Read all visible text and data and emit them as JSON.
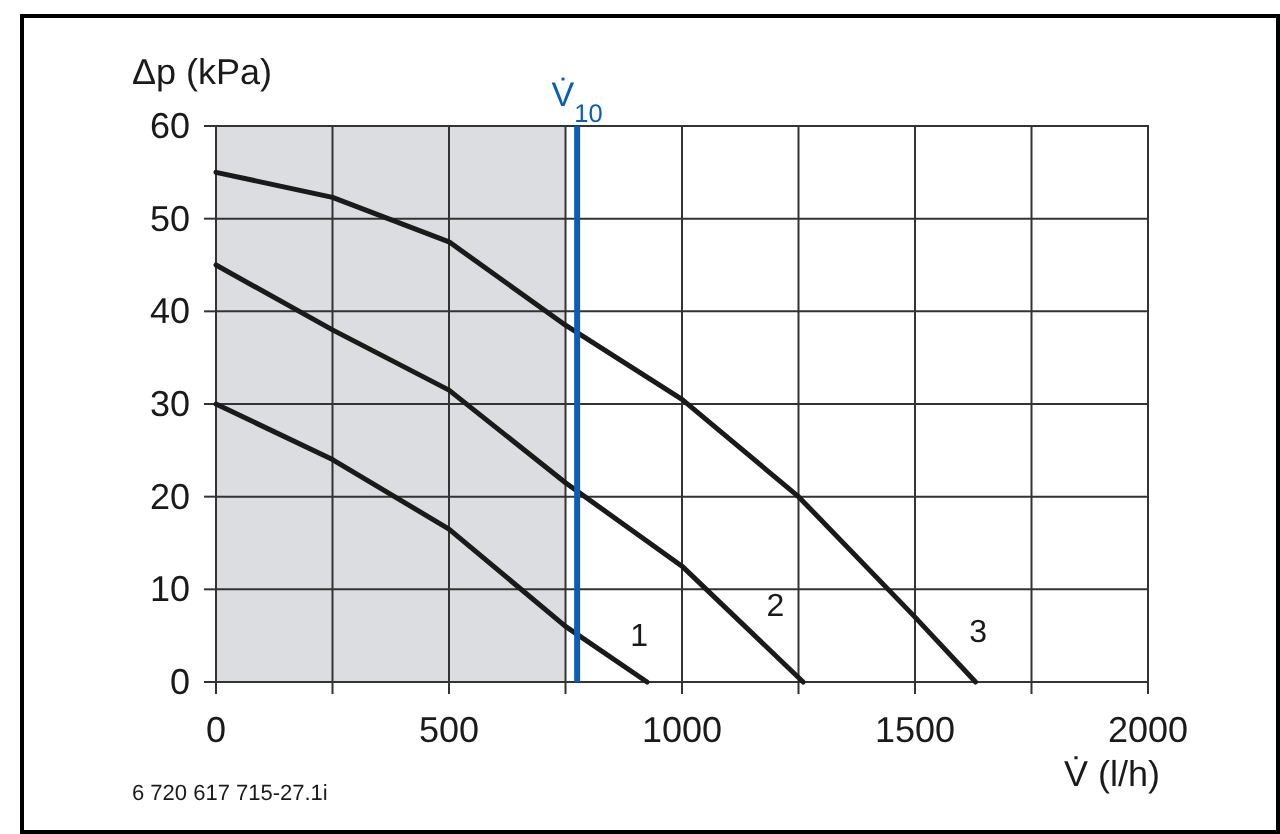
{
  "chart_data": {
    "type": "line",
    "xlabel": "V̇ (l/h)",
    "ylabel": "Δp (kPa)",
    "xlim": [
      0,
      2000
    ],
    "ylim": [
      0,
      60
    ],
    "xticks": [
      0,
      {
        "value": 250,
        "label": null
      },
      500,
      {
        "value": 750,
        "label": null
      },
      1000,
      {
        "value": 1250,
        "label": null
      },
      1500,
      {
        "value": 1750,
        "label": null
      },
      2000
    ],
    "yticks": [
      0,
      10,
      20,
      30,
      40,
      50,
      60
    ],
    "grid": true,
    "marker": "none",
    "line_style": "solid",
    "series": [
      {
        "name": "1",
        "color": "#1a1a1a",
        "x": [
          0,
          250,
          500,
          750,
          925
        ],
        "values": [
          30,
          24,
          16.5,
          6,
          0
        ]
      },
      {
        "name": "2",
        "color": "#1a1a1a",
        "x": [
          0,
          250,
          500,
          750,
          1000,
          1260
        ],
        "values": [
          45,
          38,
          31.5,
          21.5,
          12.5,
          0
        ]
      },
      {
        "name": "3",
        "color": "#1a1a1a",
        "x": [
          0,
          250,
          500,
          750,
          1000,
          1250,
          1500,
          1630
        ],
        "values": [
          55,
          52.3,
          47.5,
          38.5,
          30.5,
          20,
          7,
          0
        ]
      }
    ],
    "bands": [
      {
        "axis": "x",
        "from": 0,
        "to": 750,
        "label": null,
        "color": "#dcdde0"
      }
    ],
    "ref_lines": [
      {
        "axis": "x",
        "value": 775,
        "label": "V̇$_{10}$",
        "color": "#0a5fb4"
      }
    ],
    "annotations": [
      "6 720 617 715-27.1i"
    ]
  }
}
